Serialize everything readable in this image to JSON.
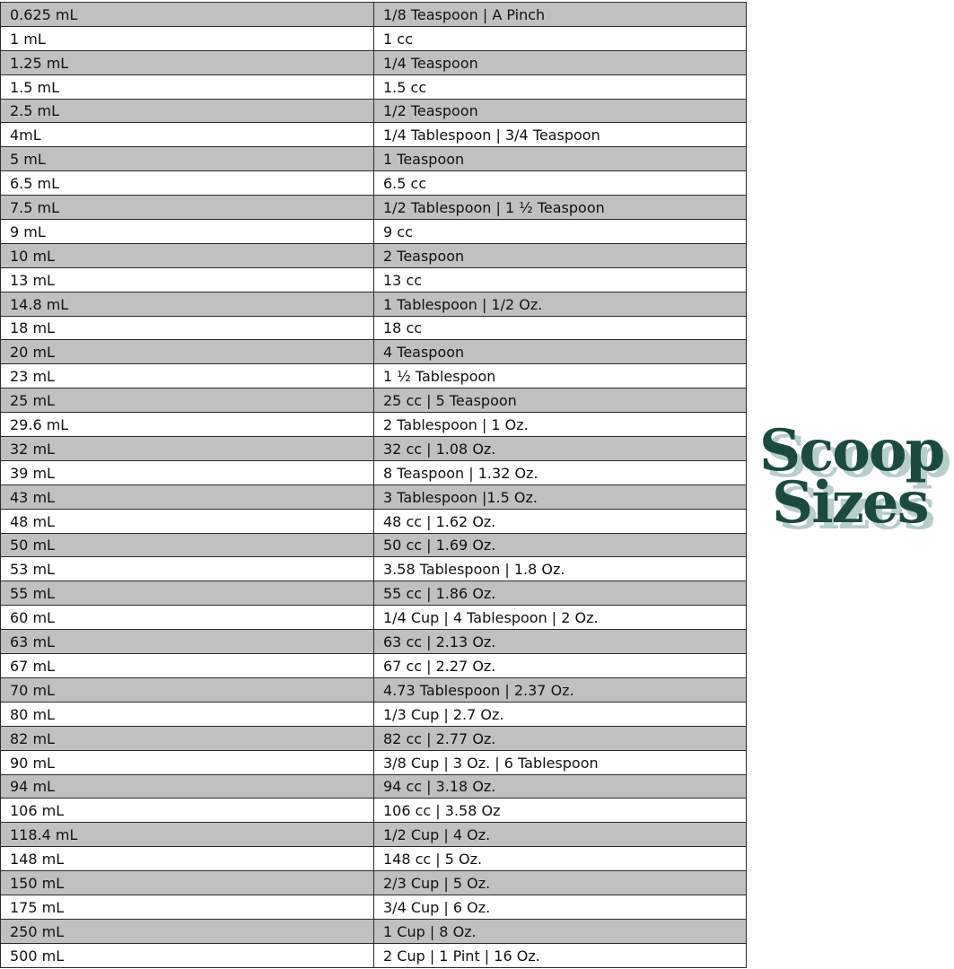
{
  "rows": [
    [
      "0.625 mL",
      "1/8 Teaspoon | A Pinch"
    ],
    [
      "1 mL",
      "1 cc"
    ],
    [
      "1.25 mL",
      "1/4 Teaspoon"
    ],
    [
      "1.5 mL",
      "1.5 cc"
    ],
    [
      "2.5 mL",
      "1/2 Teaspoon"
    ],
    [
      "4mL",
      "1/4 Tablespoon | 3/4 Teaspoon"
    ],
    [
      "5 mL",
      "1 Teaspoon"
    ],
    [
      "6.5 mL",
      "6.5 cc"
    ],
    [
      "7.5 mL",
      "1/2 Tablespoon | 1 ½ Teaspoon"
    ],
    [
      "9 mL",
      "9 cc"
    ],
    [
      "10 mL",
      "2 Teaspoon"
    ],
    [
      "13 mL",
      "13 cc"
    ],
    [
      "14.8 mL",
      "1 Tablespoon | 1/2 Oz."
    ],
    [
      "18 mL",
      "18 cc"
    ],
    [
      "20 mL",
      "4 Teaspoon"
    ],
    [
      "23 mL",
      "1 ½ Tablespoon"
    ],
    [
      "25 mL",
      "25 cc | 5 Teaspoon"
    ],
    [
      "29.6 mL",
      "2 Tablespoon | 1 Oz."
    ],
    [
      "32 mL",
      "32 cc | 1.08 Oz."
    ],
    [
      "39 mL",
      "8 Teaspoon | 1.32 Oz."
    ],
    [
      "43 mL",
      "3 Tablespoon |1.5 Oz."
    ],
    [
      "48 mL",
      "48 cc | 1.62 Oz."
    ],
    [
      "50 mL",
      "50 cc | 1.69 Oz."
    ],
    [
      "53 mL",
      "3.58 Tablespoon | 1.8 Oz."
    ],
    [
      "55 mL",
      "55 cc | 1.86 Oz."
    ],
    [
      "60 mL",
      "1/4 Cup | 4 Tablespoon | 2 Oz."
    ],
    [
      "63 mL",
      "63 cc | 2.13 Oz."
    ],
    [
      "67 mL",
      "67 cc | 2.27 Oz."
    ],
    [
      "70 mL",
      "4.73 Tablespoon | 2.37 Oz."
    ],
    [
      "80 mL",
      "1/3 Cup | 2.7 Oz."
    ],
    [
      "82 mL",
      "82 cc | 2.77 Oz."
    ],
    [
      "90 mL",
      "3/8 Cup | 3 Oz. | 6 Tablespoon"
    ],
    [
      "94 mL",
      "94 cc | 3.18 Oz."
    ],
    [
      "106 mL",
      "106 cc | 3.58 Oz"
    ],
    [
      "118.4 mL",
      "1/2 Cup | 4 Oz."
    ],
    [
      "148 mL",
      "148 cc | 5 Oz."
    ],
    [
      "150 mL",
      "2/3 Cup | 5 Oz."
    ],
    [
      "175 mL",
      "3/4 Cup | 6 Oz."
    ],
    [
      "250 mL",
      "1 Cup | 8 Oz."
    ],
    [
      "500 mL",
      "2 Cup | 1 Pint | 16 Oz."
    ]
  ],
  "logo": {
    "line1": "Scoop",
    "line2": "Sizes",
    "color": "#1d4a40",
    "shadow_color": "#b7cecb"
  },
  "colors": {
    "row_shade": "#c0c0c0",
    "border": "#2a2a2a"
  }
}
